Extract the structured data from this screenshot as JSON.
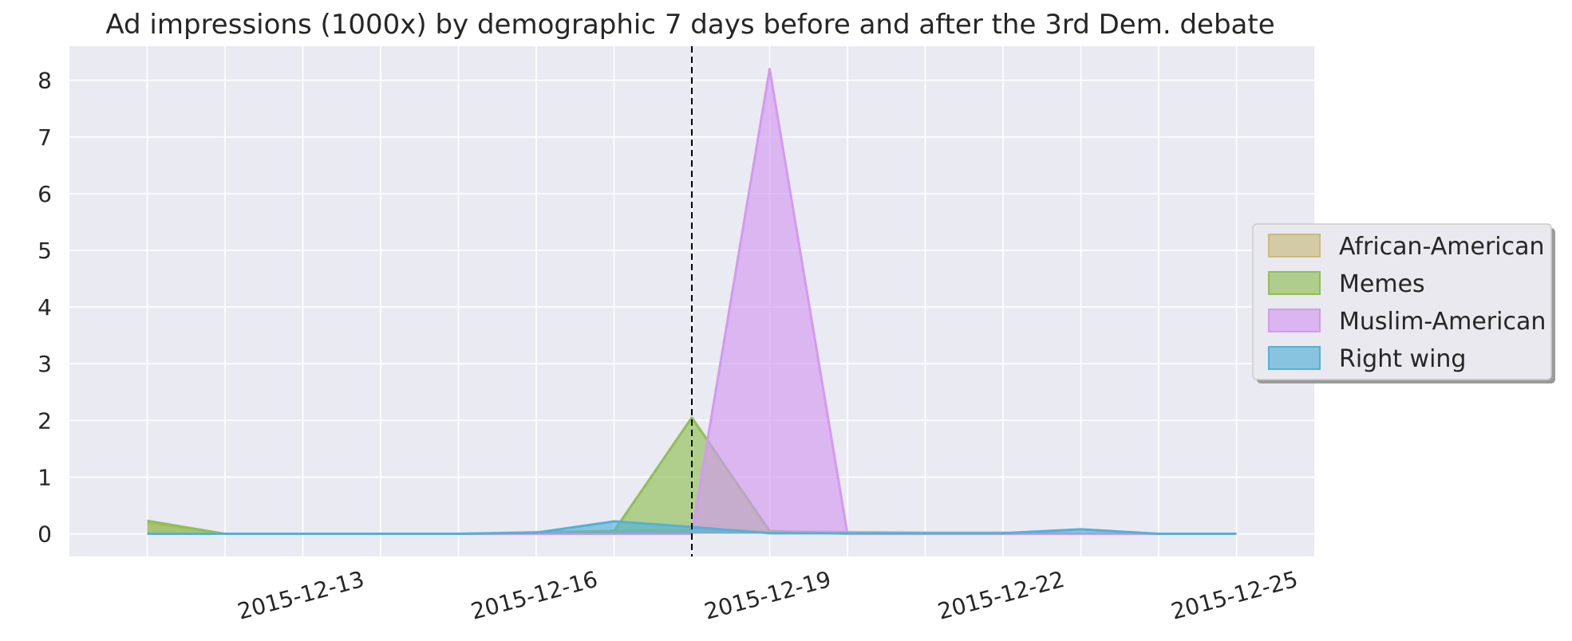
{
  "chart_data": {
    "type": "area",
    "title": "Ad impressions (1000x) by demographic 7 days before and after the 3rd Dem. debate",
    "xlabel": "",
    "ylabel": "",
    "x": [
      "2015-12-11",
      "2015-12-12",
      "2015-12-13",
      "2015-12-14",
      "2015-12-15",
      "2015-12-16",
      "2015-12-17",
      "2015-12-18",
      "2015-12-19",
      "2015-12-20",
      "2015-12-21",
      "2015-12-22",
      "2015-12-23",
      "2015-12-24",
      "2015-12-25"
    ],
    "x_tick_labels": [
      "2015-12-13",
      "2015-12-16",
      "2015-12-19",
      "2015-12-22",
      "2015-12-25"
    ],
    "y_ticks": [
      0,
      1,
      2,
      3,
      4,
      5,
      6,
      7,
      8
    ],
    "xlim": [
      "2015-12-10",
      "2015-12-26"
    ],
    "ylim": [
      -0.4,
      8.6
    ],
    "grid": true,
    "vline": "2015-12-18",
    "legend_position": "right",
    "series": [
      {
        "name": "African-American",
        "color": "#c8bb7e",
        "values": [
          0.2,
          0,
          0,
          0,
          0,
          0.03,
          0.05,
          0.07,
          0.04,
          0.03,
          0.02,
          0.02,
          0,
          0,
          0
        ]
      },
      {
        "name": "Memes",
        "color": "#90bf55",
        "values": [
          0.23,
          0,
          0,
          0,
          0,
          0,
          0.05,
          2.05,
          0.05,
          0,
          0,
          0,
          0,
          0,
          0
        ]
      },
      {
        "name": "Muslim-American",
        "color": "#d39af0",
        "values": [
          0,
          0,
          0,
          0,
          0,
          0,
          0,
          0,
          8.2,
          0,
          0,
          0,
          0,
          0,
          0
        ]
      },
      {
        "name": "Right wing",
        "color": "#55b0d6",
        "values": [
          0,
          0,
          0,
          0,
          0,
          0.02,
          0.22,
          0.12,
          0.01,
          0.01,
          0.01,
          0.01,
          0.08,
          0,
          0
        ]
      }
    ]
  }
}
